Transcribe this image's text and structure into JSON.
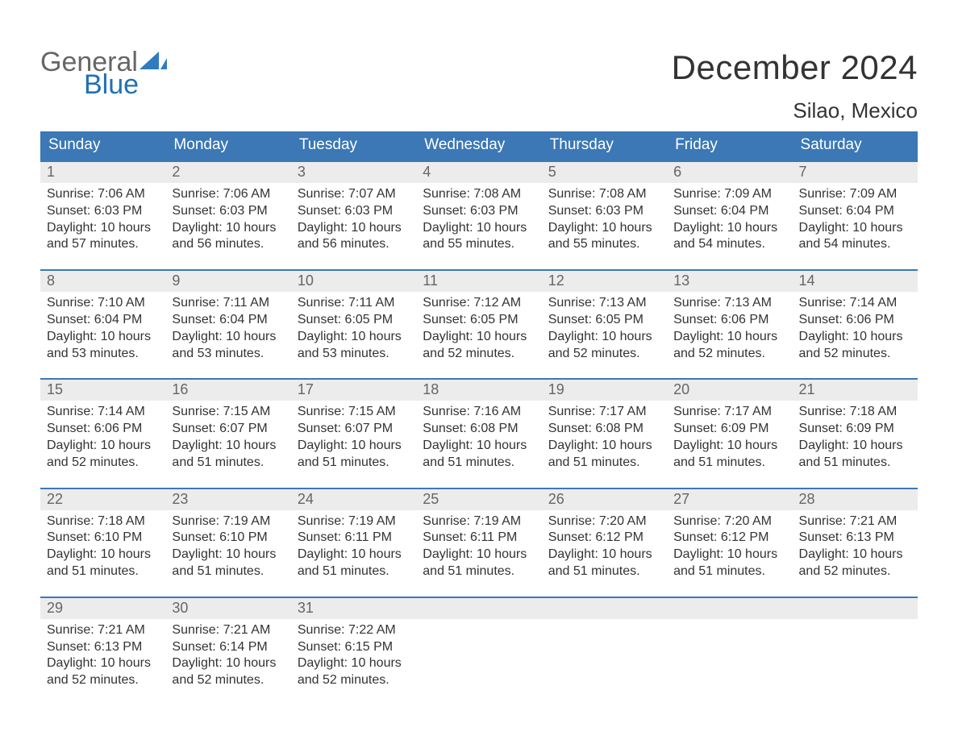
{
  "logo": {
    "text_general": "General",
    "text_blue": "Blue",
    "sail_color": "#2f7bbf"
  },
  "title": "December 2024",
  "location": "Silao, Mexico",
  "colors": {
    "header_bg": "#3b78b5",
    "header_text": "#ffffff",
    "week_border": "#3b78b5",
    "daynum_bg": "#ececec",
    "daynum_text": "#666666",
    "body_text": "#333333",
    "page_bg": "#ffffff"
  },
  "layout": {
    "columns": 7,
    "rows": 5,
    "header_fontsize": 19,
    "daynum_fontsize": 18,
    "body_fontsize": 16,
    "title_fontsize": 42,
    "location_fontsize": 26
  },
  "day_headers": [
    "Sunday",
    "Monday",
    "Tuesday",
    "Wednesday",
    "Thursday",
    "Friday",
    "Saturday"
  ],
  "weeks": [
    [
      {
        "n": "1",
        "sunrise": "Sunrise: 7:06 AM",
        "sunset": "Sunset: 6:03 PM",
        "daylight": "Daylight: 10 hours and 57 minutes."
      },
      {
        "n": "2",
        "sunrise": "Sunrise: 7:06 AM",
        "sunset": "Sunset: 6:03 PM",
        "daylight": "Daylight: 10 hours and 56 minutes."
      },
      {
        "n": "3",
        "sunrise": "Sunrise: 7:07 AM",
        "sunset": "Sunset: 6:03 PM",
        "daylight": "Daylight: 10 hours and 56 minutes."
      },
      {
        "n": "4",
        "sunrise": "Sunrise: 7:08 AM",
        "sunset": "Sunset: 6:03 PM",
        "daylight": "Daylight: 10 hours and 55 minutes."
      },
      {
        "n": "5",
        "sunrise": "Sunrise: 7:08 AM",
        "sunset": "Sunset: 6:03 PM",
        "daylight": "Daylight: 10 hours and 55 minutes."
      },
      {
        "n": "6",
        "sunrise": "Sunrise: 7:09 AM",
        "sunset": "Sunset: 6:04 PM",
        "daylight": "Daylight: 10 hours and 54 minutes."
      },
      {
        "n": "7",
        "sunrise": "Sunrise: 7:09 AM",
        "sunset": "Sunset: 6:04 PM",
        "daylight": "Daylight: 10 hours and 54 minutes."
      }
    ],
    [
      {
        "n": "8",
        "sunrise": "Sunrise: 7:10 AM",
        "sunset": "Sunset: 6:04 PM",
        "daylight": "Daylight: 10 hours and 53 minutes."
      },
      {
        "n": "9",
        "sunrise": "Sunrise: 7:11 AM",
        "sunset": "Sunset: 6:04 PM",
        "daylight": "Daylight: 10 hours and 53 minutes."
      },
      {
        "n": "10",
        "sunrise": "Sunrise: 7:11 AM",
        "sunset": "Sunset: 6:05 PM",
        "daylight": "Daylight: 10 hours and 53 minutes."
      },
      {
        "n": "11",
        "sunrise": "Sunrise: 7:12 AM",
        "sunset": "Sunset: 6:05 PM",
        "daylight": "Daylight: 10 hours and 52 minutes."
      },
      {
        "n": "12",
        "sunrise": "Sunrise: 7:13 AM",
        "sunset": "Sunset: 6:05 PM",
        "daylight": "Daylight: 10 hours and 52 minutes."
      },
      {
        "n": "13",
        "sunrise": "Sunrise: 7:13 AM",
        "sunset": "Sunset: 6:06 PM",
        "daylight": "Daylight: 10 hours and 52 minutes."
      },
      {
        "n": "14",
        "sunrise": "Sunrise: 7:14 AM",
        "sunset": "Sunset: 6:06 PM",
        "daylight": "Daylight: 10 hours and 52 minutes."
      }
    ],
    [
      {
        "n": "15",
        "sunrise": "Sunrise: 7:14 AM",
        "sunset": "Sunset: 6:06 PM",
        "daylight": "Daylight: 10 hours and 52 minutes."
      },
      {
        "n": "16",
        "sunrise": "Sunrise: 7:15 AM",
        "sunset": "Sunset: 6:07 PM",
        "daylight": "Daylight: 10 hours and 51 minutes."
      },
      {
        "n": "17",
        "sunrise": "Sunrise: 7:15 AM",
        "sunset": "Sunset: 6:07 PM",
        "daylight": "Daylight: 10 hours and 51 minutes."
      },
      {
        "n": "18",
        "sunrise": "Sunrise: 7:16 AM",
        "sunset": "Sunset: 6:08 PM",
        "daylight": "Daylight: 10 hours and 51 minutes."
      },
      {
        "n": "19",
        "sunrise": "Sunrise: 7:17 AM",
        "sunset": "Sunset: 6:08 PM",
        "daylight": "Daylight: 10 hours and 51 minutes."
      },
      {
        "n": "20",
        "sunrise": "Sunrise: 7:17 AM",
        "sunset": "Sunset: 6:09 PM",
        "daylight": "Daylight: 10 hours and 51 minutes."
      },
      {
        "n": "21",
        "sunrise": "Sunrise: 7:18 AM",
        "sunset": "Sunset: 6:09 PM",
        "daylight": "Daylight: 10 hours and 51 minutes."
      }
    ],
    [
      {
        "n": "22",
        "sunrise": "Sunrise: 7:18 AM",
        "sunset": "Sunset: 6:10 PM",
        "daylight": "Daylight: 10 hours and 51 minutes."
      },
      {
        "n": "23",
        "sunrise": "Sunrise: 7:19 AM",
        "sunset": "Sunset: 6:10 PM",
        "daylight": "Daylight: 10 hours and 51 minutes."
      },
      {
        "n": "24",
        "sunrise": "Sunrise: 7:19 AM",
        "sunset": "Sunset: 6:11 PM",
        "daylight": "Daylight: 10 hours and 51 minutes."
      },
      {
        "n": "25",
        "sunrise": "Sunrise: 7:19 AM",
        "sunset": "Sunset: 6:11 PM",
        "daylight": "Daylight: 10 hours and 51 minutes."
      },
      {
        "n": "26",
        "sunrise": "Sunrise: 7:20 AM",
        "sunset": "Sunset: 6:12 PM",
        "daylight": "Daylight: 10 hours and 51 minutes."
      },
      {
        "n": "27",
        "sunrise": "Sunrise: 7:20 AM",
        "sunset": "Sunset: 6:12 PM",
        "daylight": "Daylight: 10 hours and 51 minutes."
      },
      {
        "n": "28",
        "sunrise": "Sunrise: 7:21 AM",
        "sunset": "Sunset: 6:13 PM",
        "daylight": "Daylight: 10 hours and 52 minutes."
      }
    ],
    [
      {
        "n": "29",
        "sunrise": "Sunrise: 7:21 AM",
        "sunset": "Sunset: 6:13 PM",
        "daylight": "Daylight: 10 hours and 52 minutes."
      },
      {
        "n": "30",
        "sunrise": "Sunrise: 7:21 AM",
        "sunset": "Sunset: 6:14 PM",
        "daylight": "Daylight: 10 hours and 52 minutes."
      },
      {
        "n": "31",
        "sunrise": "Sunrise: 7:22 AM",
        "sunset": "Sunset: 6:15 PM",
        "daylight": "Daylight: 10 hours and 52 minutes."
      },
      {
        "empty": true
      },
      {
        "empty": true
      },
      {
        "empty": true
      },
      {
        "empty": true
      }
    ]
  ]
}
